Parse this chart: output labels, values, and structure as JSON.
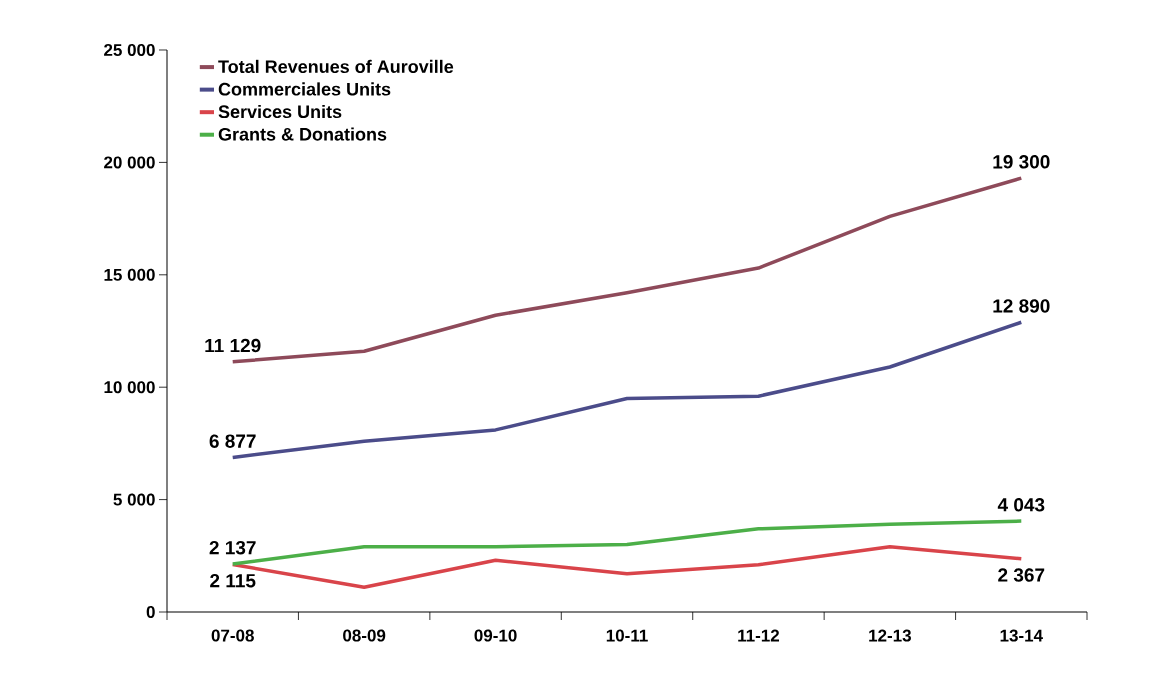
{
  "chart_data": {
    "type": "line",
    "categories": [
      "07-08",
      "08-09",
      "09-10",
      "10-11",
      "11-12",
      "12-13",
      "13-14"
    ],
    "series": [
      {
        "name": "Total Revenues of Auroville",
        "color": "#8e4a5a",
        "values": [
          11129,
          11600,
          13200,
          14200,
          15300,
          17600,
          19300
        ],
        "value_labels": [
          "11 129",
          null,
          null,
          null,
          null,
          null,
          "19 300"
        ]
      },
      {
        "name": "Commerciales Units",
        "color": "#4b4c8a",
        "values": [
          6877,
          7600,
          8100,
          9500,
          9600,
          10900,
          12890
        ],
        "value_labels": [
          "6 877",
          null,
          null,
          null,
          null,
          null,
          "12 890"
        ]
      },
      {
        "name": "Services Units",
        "color": "#d9444a",
        "values": [
          2115,
          1100,
          2300,
          1700,
          2100,
          2900,
          2367
        ],
        "value_labels": [
          "2 115",
          null,
          null,
          null,
          null,
          null,
          "2 367"
        ]
      },
      {
        "name": "Grants & Donations",
        "color": "#4caf48",
        "values": [
          2137,
          2900,
          2900,
          3000,
          3700,
          3900,
          4043
        ],
        "value_labels": [
          "2 137",
          null,
          null,
          null,
          null,
          null,
          "4 043"
        ]
      }
    ],
    "ylim": [
      0,
      25000
    ],
    "yticks": [
      {
        "value": 0,
        "label": "0"
      },
      {
        "value": 5000,
        "label": "5 000"
      },
      {
        "value": 10000,
        "label": "10 000"
      },
      {
        "value": 15000,
        "label": "15 000"
      },
      {
        "value": 20000,
        "label": "20 000"
      },
      {
        "value": 25000,
        "label": "25 000"
      }
    ],
    "legend": "top left",
    "grid": false,
    "marker": "none",
    "line_style": "solid"
  }
}
